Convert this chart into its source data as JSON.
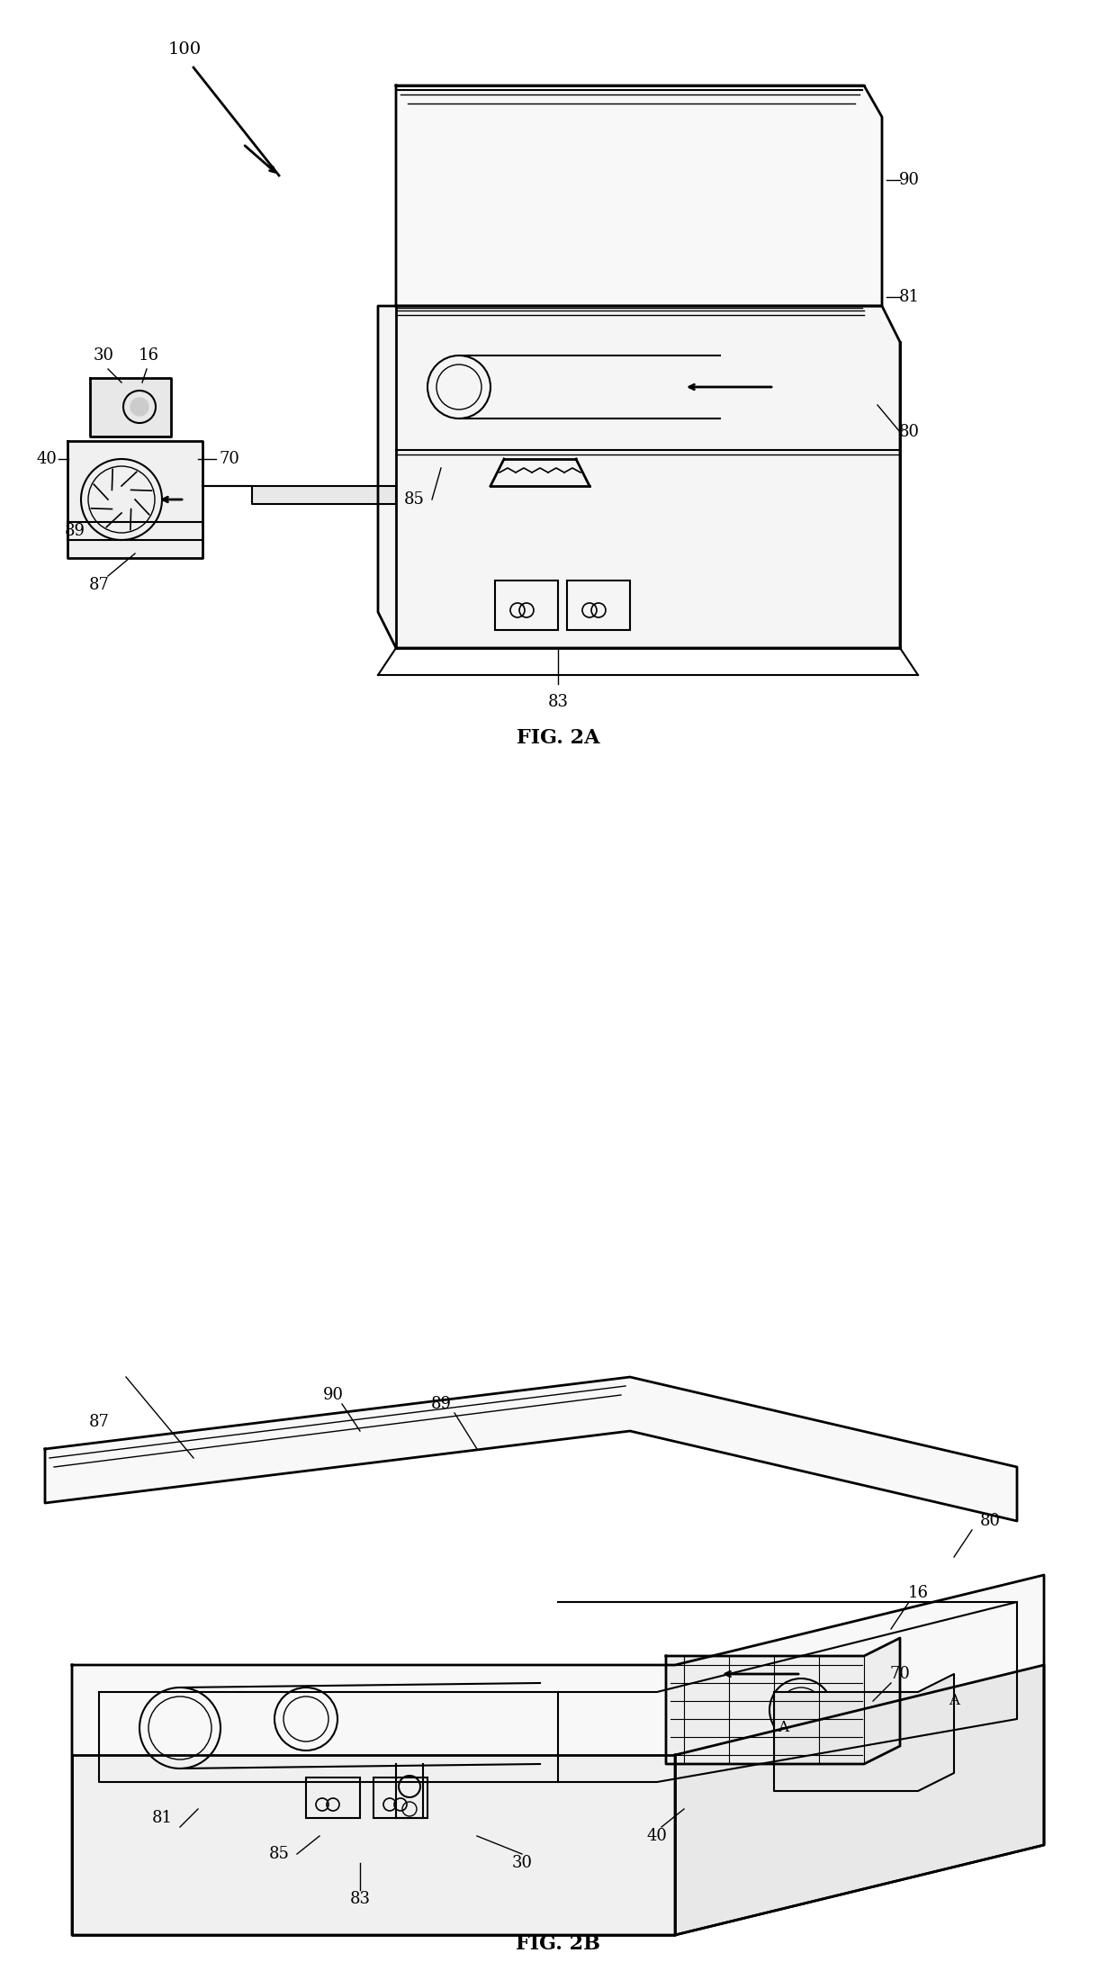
{
  "bg_color": "#ffffff",
  "line_color": "#000000",
  "fig_width": 12.4,
  "fig_height": 21.9,
  "fig2a_label": "FIG. 2A",
  "fig2b_label": "FIG. 2B",
  "label_100": "100",
  "label_90_a": "90",
  "label_81_a": "81",
  "label_80_a": "80",
  "label_30_a": "30",
  "label_16_a": "16",
  "label_40_a": "40",
  "label_70_a": "70",
  "label_89_a": "89",
  "label_87_a": "87",
  "label_85_a": "85",
  "label_83_a": "83",
  "label_87_b": "87",
  "label_90_b": "90",
  "label_89_b": "89",
  "label_80_b": "80",
  "label_81_b": "81",
  "label_85_b": "85",
  "label_83_b": "83",
  "label_30_b": "30",
  "label_40_b": "40",
  "label_16_b": "16",
  "label_70_b": "70",
  "label_A_b": "A",
  "label_A2_b": "A"
}
